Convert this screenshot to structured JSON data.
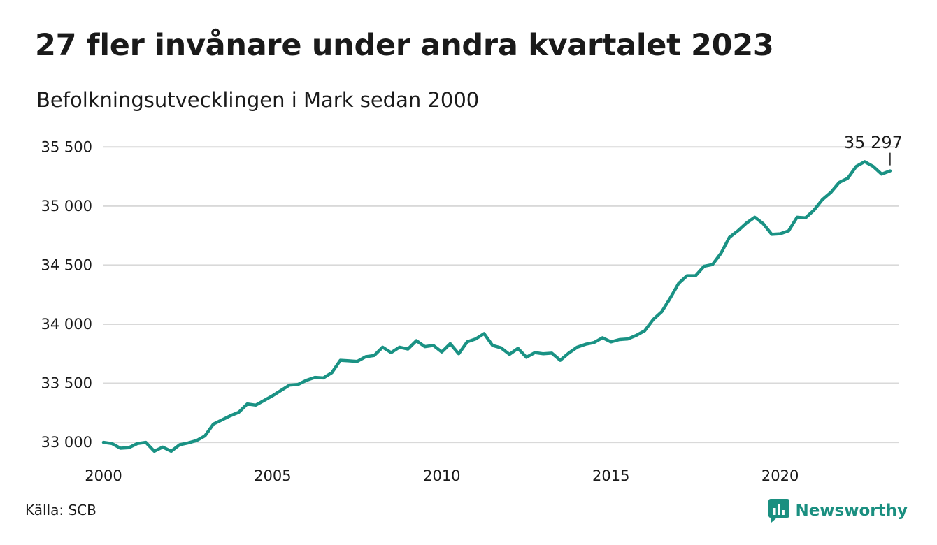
{
  "header": {
    "title": "27 fler invånare under andra kvartalet 2023",
    "subtitle": "Befolkningsutvecklingen i Mark sedan 2000"
  },
  "footer": {
    "source": "Källa: SCB",
    "brand": "Newsworthy",
    "brand_icon": "newsworthy-logo-icon"
  },
  "colors": {
    "line": "#1a9284",
    "grid": "#d9d9d9",
    "brand": "#1a8f80"
  },
  "chart_data": {
    "type": "line",
    "title": "27 fler invånare under andra kvartalet 2023",
    "subtitle": "Befolkningsutvecklingen i Mark sedan 2000",
    "xlabel": "",
    "ylabel": "",
    "xlim": [
      2000,
      2023.5
    ],
    "ylim": [
      32900,
      35620
    ],
    "x_ticks": [
      2000,
      2005,
      2010,
      2015,
      2020
    ],
    "x_tick_labels": [
      "2000",
      "2005",
      "2010",
      "2015",
      "2020"
    ],
    "y_ticks": [
      33000,
      33500,
      34000,
      34500,
      35000,
      35500
    ],
    "y_tick_labels": [
      "33 000",
      "33 500",
      "34 000",
      "34 500",
      "35 000",
      "35 500"
    ],
    "grid": true,
    "annotation": {
      "label": "35 297",
      "x": 2023.25,
      "y": 35297
    },
    "series": [
      {
        "x": [
          2000,
          2000.25,
          2000.5,
          2000.75,
          2001,
          2001.25,
          2001.5,
          2001.75,
          2002,
          2002.25,
          2002.5,
          2002.75,
          2003,
          2003.25,
          2003.5,
          2003.75,
          2004,
          2004.25,
          2004.5,
          2004.75,
          2005,
          2005.25,
          2005.5,
          2005.75,
          2006,
          2006.25,
          2006.5,
          2006.75,
          2007,
          2007.25,
          2007.5,
          2007.75,
          2008,
          2008.25,
          2008.5,
          2008.75,
          2009,
          2009.25,
          2009.5,
          2009.75,
          2010,
          2010.25,
          2010.5,
          2010.75,
          2011,
          2011.25,
          2011.5,
          2011.75,
          2012,
          2012.25,
          2012.5,
          2012.75,
          2013,
          2013.25,
          2013.5,
          2013.75,
          2014,
          2014.25,
          2014.5,
          2014.75,
          2015,
          2015.25,
          2015.5,
          2015.75,
          2016,
          2016.25,
          2016.5,
          2016.75,
          2017,
          2017.25,
          2017.5,
          2017.75,
          2018,
          2018.25,
          2018.5,
          2018.75,
          2019,
          2019.25,
          2019.5,
          2019.75,
          2020,
          2020.25,
          2020.5,
          2020.75,
          2021,
          2021.25,
          2021.5,
          2021.75,
          2022,
          2022.25,
          2022.5,
          2022.75,
          2023,
          2023.25
        ],
        "y": [
          33000,
          32990,
          32950,
          32955,
          32990,
          33000,
          32925,
          32960,
          32925,
          32980,
          32995,
          33015,
          33055,
          33155,
          33190,
          33225,
          33255,
          33325,
          33315,
          33355,
          33395,
          33440,
          33485,
          33490,
          33525,
          33550,
          33545,
          33590,
          33695,
          33690,
          33685,
          33725,
          33735,
          33805,
          33760,
          33805,
          33790,
          33860,
          33810,
          33820,
          33765,
          33835,
          33750,
          33850,
          33875,
          33920,
          33820,
          33800,
          33745,
          33795,
          33720,
          33760,
          33750,
          33755,
          33695,
          33755,
          33805,
          33830,
          33845,
          33885,
          33850,
          33870,
          33875,
          33905,
          33945,
          34040,
          34105,
          34220,
          34345,
          34410,
          34410,
          34490,
          34505,
          34600,
          34735,
          34790,
          34855,
          34905,
          34850,
          34760,
          34765,
          34790,
          34905,
          34900,
          34965,
          35055,
          35115,
          35200,
          35235,
          35335,
          35375,
          35335,
          35270,
          35297
        ]
      }
    ]
  }
}
